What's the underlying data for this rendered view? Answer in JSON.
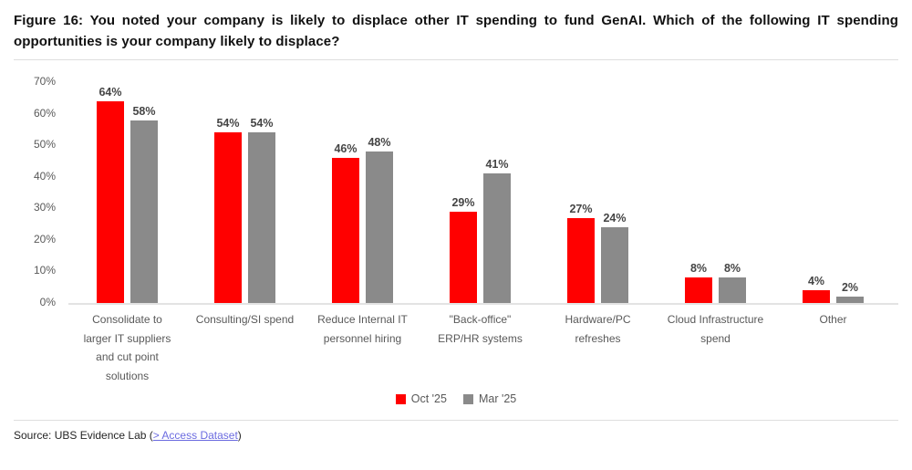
{
  "chart_data": {
    "type": "bar",
    "title": "Figure 16: You noted your company is likely to displace other IT spending to fund GenAI. Which of the following IT spending opportunities is your company likely to displace?",
    "categories": [
      "Consolidate to\nlarger IT suppliers\nand cut point\nsolutions",
      "Consulting/SI spend",
      "Reduce Internal IT\npersonnel hiring",
      "\"Back-office\"\nERP/HR systems",
      "Hardware/PC\nrefreshes",
      "Cloud Infrastructure\nspend",
      "Other"
    ],
    "series": [
      {
        "name": "Oct '25",
        "color": "#ff0000",
        "values": [
          64,
          54,
          46,
          29,
          27,
          8,
          4
        ]
      },
      {
        "name": "Mar '25",
        "color": "#8a8a8a",
        "values": [
          58,
          54,
          48,
          41,
          24,
          8,
          2
        ]
      }
    ],
    "data_label_format": "{value}%",
    "xlabel": "",
    "ylabel": "",
    "ylim": [
      0,
      70
    ],
    "yticks": [
      "70%",
      "60%",
      "50%",
      "40%",
      "30%",
      "20%",
      "10%",
      "0%"
    ],
    "grid": false,
    "data_labels": true,
    "legend_position": "bottom"
  },
  "footer": {
    "source_prefix": "Source: UBS Evidence Lab (",
    "link_text": "> Access Dataset",
    "source_suffix": ")"
  },
  "colors": {
    "bar_oct": "#ff0000",
    "bar_mar": "#8a8a8a",
    "link": "#6b6be0",
    "axis_text": "#595959",
    "data_label_text": "#454545"
  }
}
